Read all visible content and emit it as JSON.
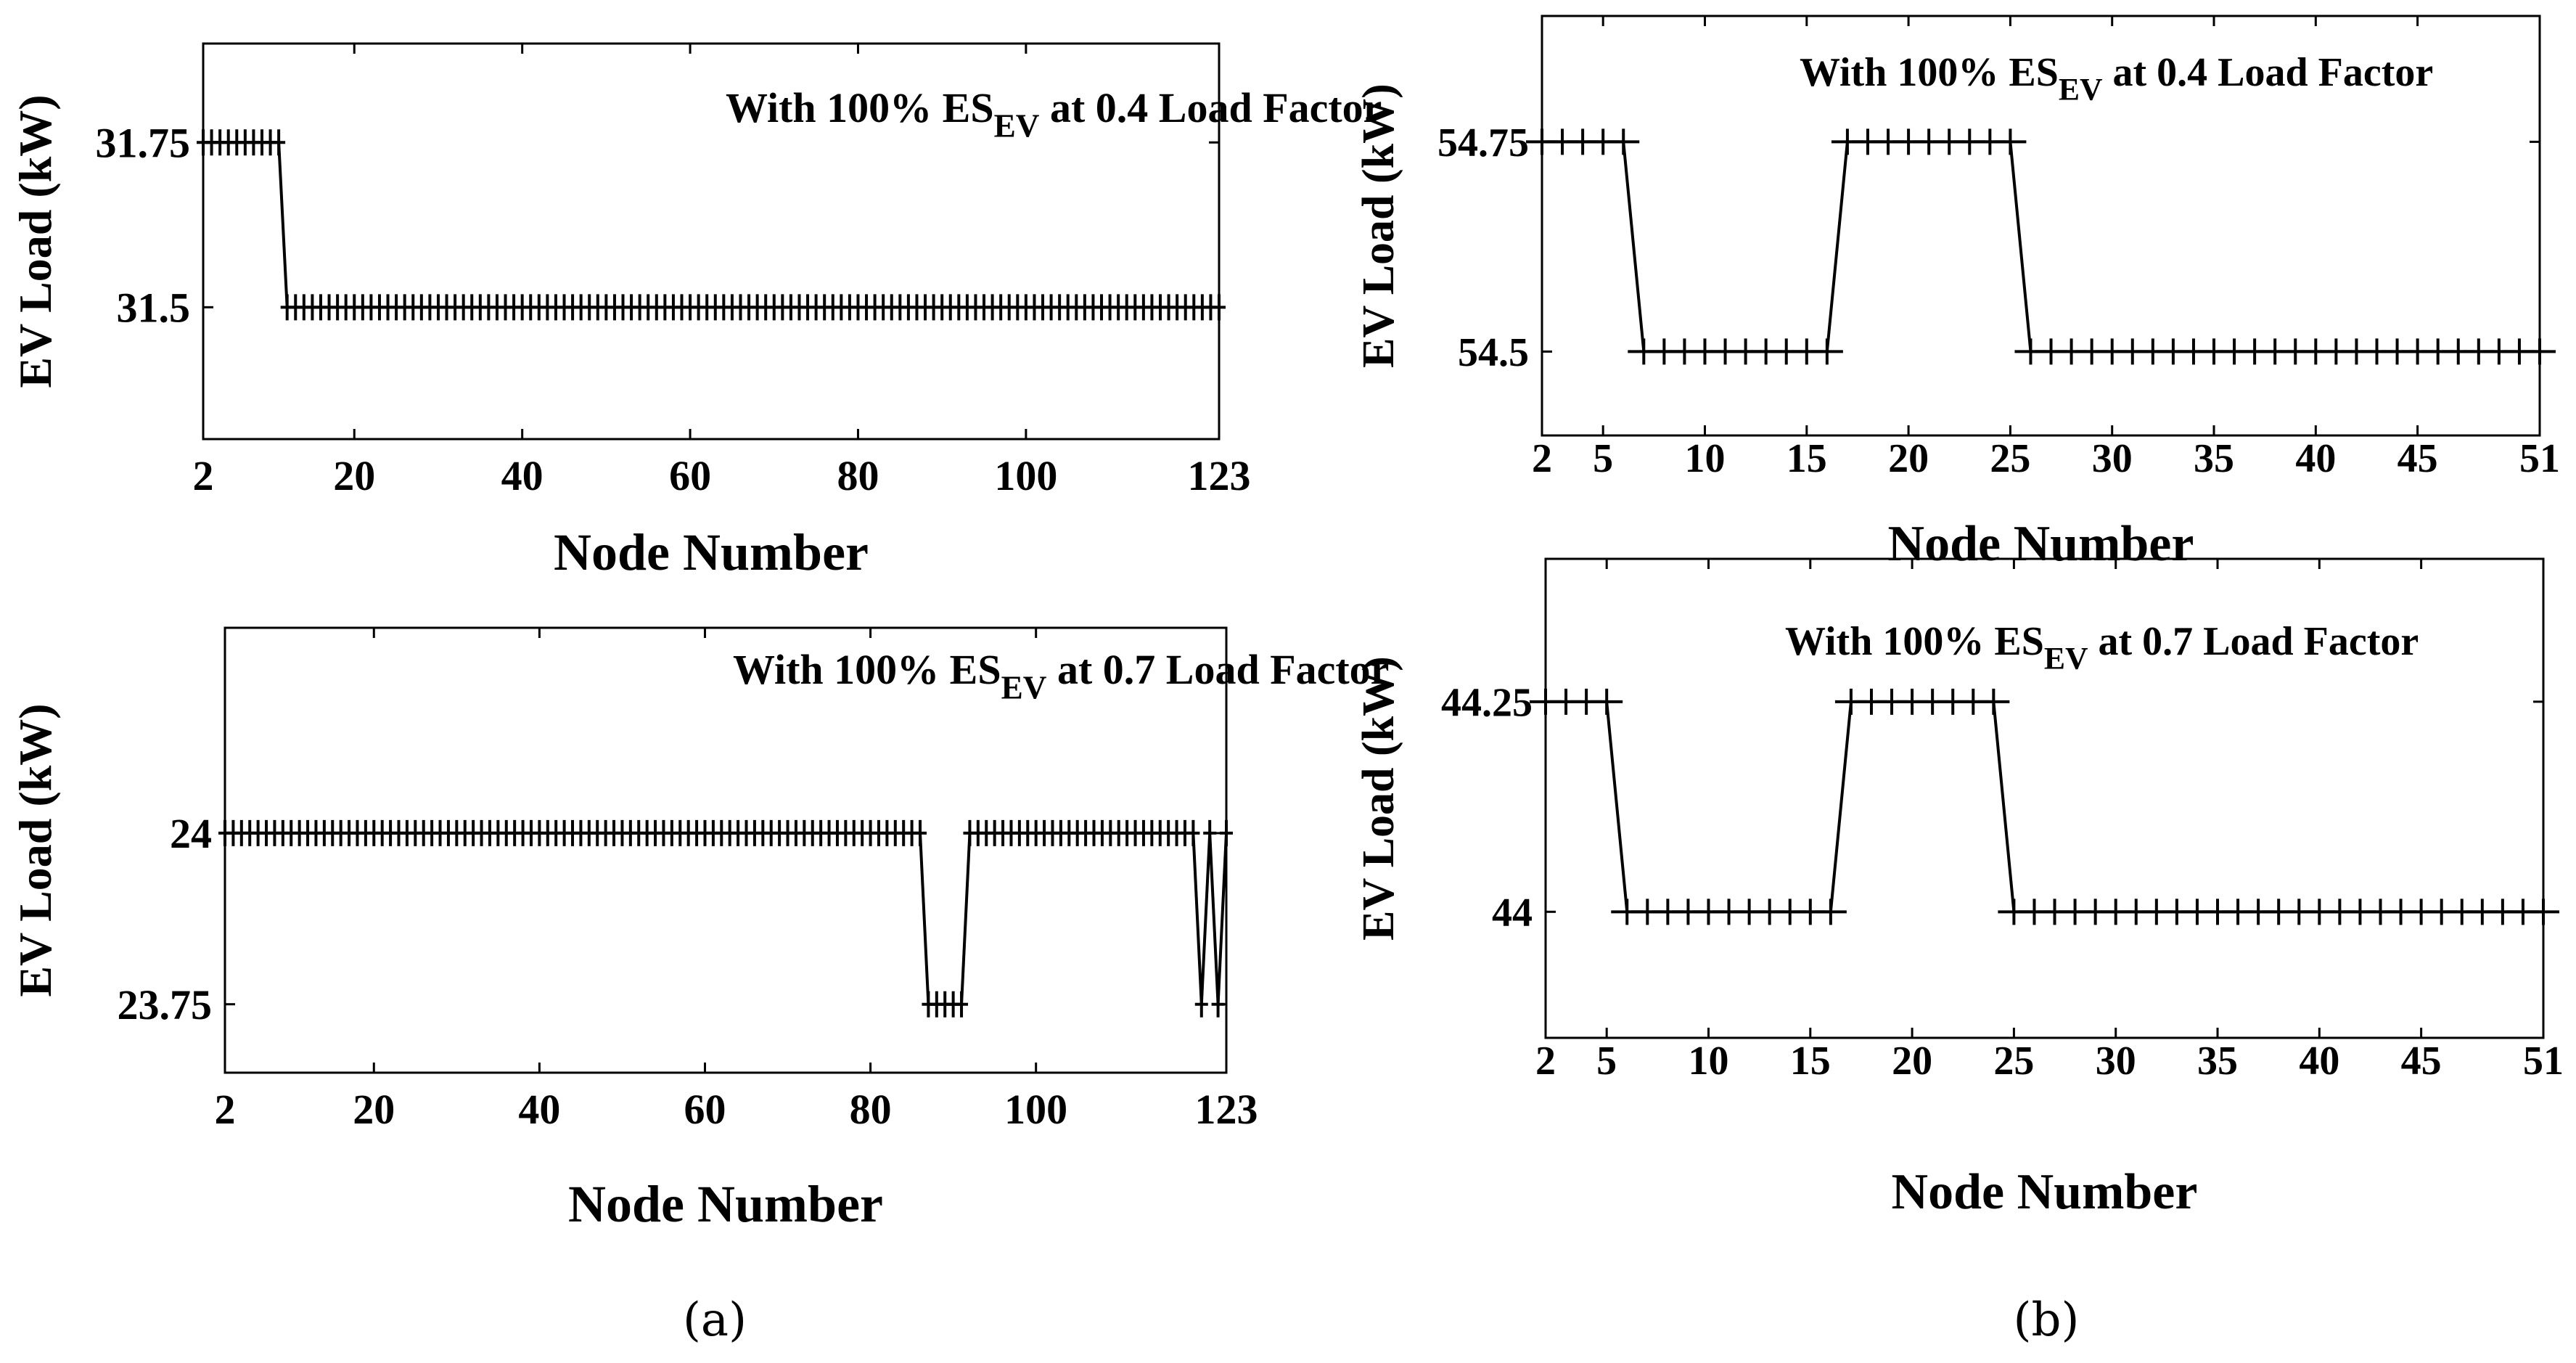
{
  "captions": [
    "(a)",
    "(b)"
  ],
  "chart_data": [
    {
      "type": "line",
      "panel": "a",
      "position": "top-left",
      "title_main": "With 100% ES",
      "title_sub": "EV",
      "title_tail": " at 0.4 Load Factor",
      "xlabel": "Node Number",
      "ylabel": "EV Load (kW)",
      "xlim": [
        2,
        123
      ],
      "ylim": [
        31.3,
        31.9
      ],
      "xticks": [
        2,
        20,
        40,
        60,
        80,
        100,
        123
      ],
      "yticks": [
        31.5,
        31.75
      ],
      "ytick_labels": [
        "31.5",
        "31.75"
      ],
      "marker": "+",
      "series": [
        {
          "name": "EV Load",
          "segments": [
            {
              "x_from": 2,
              "x_to": 11,
              "y": 31.75
            },
            {
              "x_from": 12,
              "x_to": 123,
              "y": 31.5
            }
          ]
        }
      ]
    },
    {
      "type": "line",
      "panel": "b",
      "position": "top-right",
      "title_main": "With 100% ES",
      "title_sub": "EV",
      "title_tail": " at 0.4 Load Factor",
      "xlabel": "Node Number",
      "ylabel": "EV Load (kW)",
      "xlim": [
        2,
        51
      ],
      "ylim": [
        54.4,
        54.9
      ],
      "xticks": [
        2,
        5,
        10,
        15,
        20,
        25,
        30,
        35,
        40,
        45,
        51
      ],
      "yticks": [
        54.5,
        54.75
      ],
      "ytick_labels": [
        "54.5",
        "54.75"
      ],
      "marker": "+",
      "series": [
        {
          "name": "EV Load",
          "segments": [
            {
              "x_from": 2,
              "x_to": 6,
              "y": 54.75
            },
            {
              "x_from": 7,
              "x_to": 16,
              "y": 54.5
            },
            {
              "x_from": 17,
              "x_to": 25,
              "y": 54.75
            },
            {
              "x_from": 26,
              "x_to": 51,
              "y": 54.5
            }
          ]
        }
      ]
    },
    {
      "type": "line",
      "panel": "a",
      "position": "bottom-left",
      "title_main": "With 100% ES",
      "title_sub": "EV",
      "title_tail": " at 0.7 Load Factor",
      "xlabel": "Node Number",
      "ylabel": "EV Load (kW)",
      "xlim": [
        2,
        123
      ],
      "ylim": [
        23.65,
        24.3
      ],
      "xticks": [
        2,
        20,
        40,
        60,
        80,
        100,
        123
      ],
      "yticks": [
        23.75,
        24
      ],
      "ytick_labels": [
        "23.75",
        "24"
      ],
      "marker": "+",
      "series": [
        {
          "name": "EV Load",
          "segments": [
            {
              "x_from": 2,
              "x_to": 86,
              "y": 24
            },
            {
              "x_from": 87,
              "x_to": 91,
              "y": 23.75
            },
            {
              "x_from": 92,
              "x_to": 119,
              "y": 24
            },
            {
              "x_from": 120,
              "x_to": 120,
              "y": 23.75
            },
            {
              "x_from": 121,
              "x_to": 121,
              "y": 24
            },
            {
              "x_from": 122,
              "x_to": 122,
              "y": 23.75
            },
            {
              "x_from": 123,
              "x_to": 123,
              "y": 24
            }
          ]
        }
      ]
    },
    {
      "type": "line",
      "panel": "b",
      "position": "bottom-right",
      "title_main": "With 100% ES",
      "title_sub": "EV",
      "title_tail": " at 0.7 Load Factor",
      "xlabel": "Node Number",
      "ylabel": "EV Load (kW)",
      "xlim": [
        2,
        51
      ],
      "ylim": [
        43.85,
        44.42
      ],
      "xticks": [
        2,
        5,
        10,
        15,
        20,
        25,
        30,
        35,
        40,
        45,
        51
      ],
      "yticks": [
        44,
        44.25
      ],
      "ytick_labels": [
        "44",
        "44.25"
      ],
      "marker": "+",
      "series": [
        {
          "name": "EV Load",
          "segments": [
            {
              "x_from": 2,
              "x_to": 5,
              "y": 44.25
            },
            {
              "x_from": 6,
              "x_to": 16,
              "y": 44
            },
            {
              "x_from": 17,
              "x_to": 24,
              "y": 44.25
            },
            {
              "x_from": 25,
              "x_to": 51,
              "y": 44
            }
          ]
        }
      ]
    }
  ]
}
